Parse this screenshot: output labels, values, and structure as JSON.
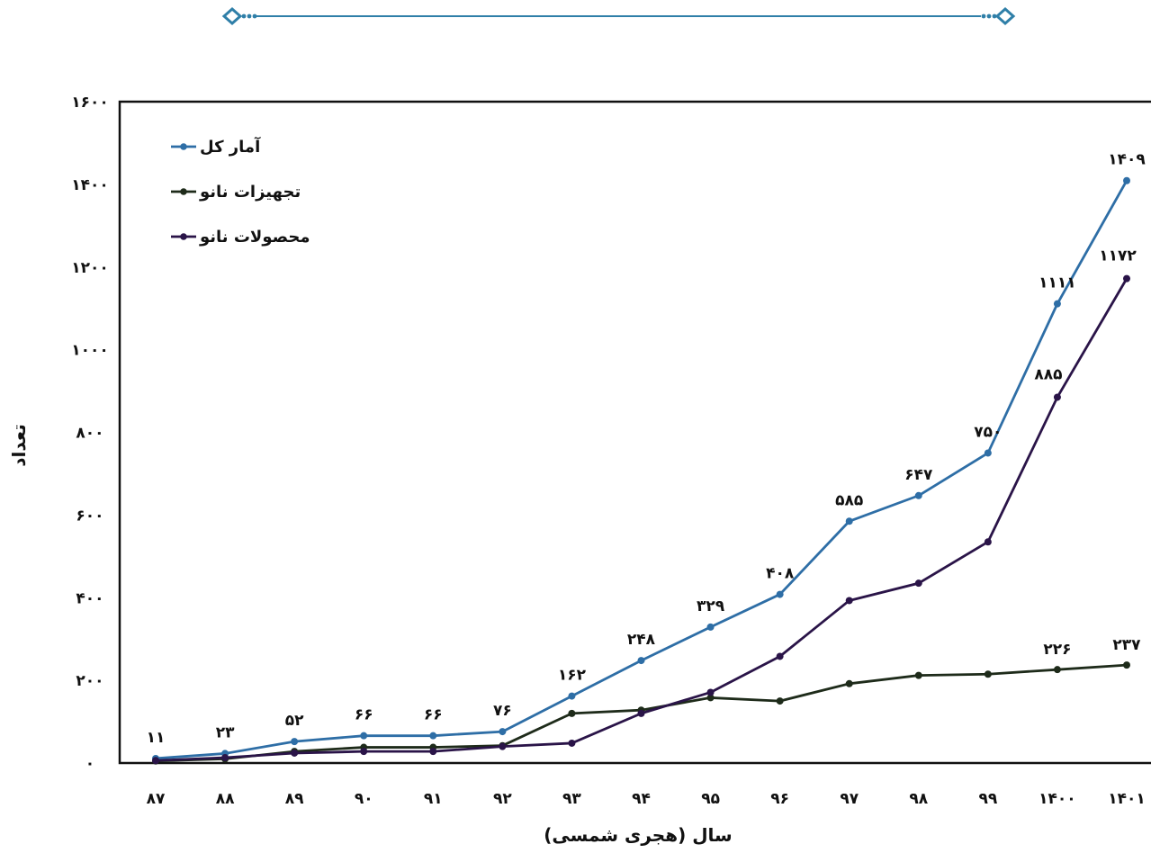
{
  "chart_data": {
    "type": "line",
    "xlabel": "سال (هجری شمسی)",
    "ylabel": "تعداد",
    "ylim": [
      0,
      1600
    ],
    "yticks": [
      0,
      200,
      400,
      600,
      800,
      1000,
      1200,
      1400,
      1600
    ],
    "ytick_labels": [
      "٠",
      "٢٠٠",
      "۴٠٠",
      "۶٠٠",
      "٨٠٠",
      "١٠٠٠",
      "١٢٠٠",
      "١۴٠٠",
      "١۶٠٠"
    ],
    "categories": [
      "٨٧",
      "٨٨",
      "٨٩",
      "٩٠",
      "٩١",
      "٩٢",
      "٩٣",
      "٩۴",
      "٩۵",
      "٩۶",
      "٩٧",
      "٩٨",
      "٩٩",
      "١۴٠٠",
      "١۴٠١"
    ],
    "grid": false,
    "legend_position": "top-left",
    "series": [
      {
        "name": "آمار کل",
        "color": "#2e6ea6",
        "values": [
          11,
          23,
          52,
          66,
          66,
          76,
          162,
          248,
          329,
          408,
          585,
          647,
          750,
          1111,
          1409
        ],
        "labels": [
          "١١",
          "٢٣",
          "۵٢",
          "۶۶",
          "۶۶",
          "٧۶",
          "١۶٢",
          "٢۴٨",
          "٣٢٩",
          "۴٠٨",
          "۵٨۵",
          "۶۴٧",
          "٧۵٠",
          "١١١١",
          "١۴٠٩"
        ]
      },
      {
        "name": "تجهیزات نانو",
        "color": "#1e2b1a",
        "values": [
          5,
          10,
          28,
          38,
          38,
          42,
          120,
          128,
          158,
          150,
          192,
          212,
          215,
          226,
          237
        ],
        "labels": [
          "",
          "",
          "",
          "",
          "",
          "",
          "",
          "",
          "",
          "",
          "",
          "",
          "",
          "٢٢۶",
          "٢٣٧"
        ]
      },
      {
        "name": "محصولات نانو",
        "color": "#2a1448",
        "values": [
          6,
          13,
          24,
          28,
          28,
          40,
          48,
          120,
          171,
          258,
          393,
          435,
          535,
          885,
          1172
        ],
        "labels": [
          "",
          "",
          "",
          "",
          "",
          "",
          "",
          "",
          "",
          "",
          "",
          "",
          "",
          "٨٨۵",
          "١١٧٢"
        ]
      }
    ]
  },
  "decoration": {
    "color": "#2f7fa8"
  }
}
